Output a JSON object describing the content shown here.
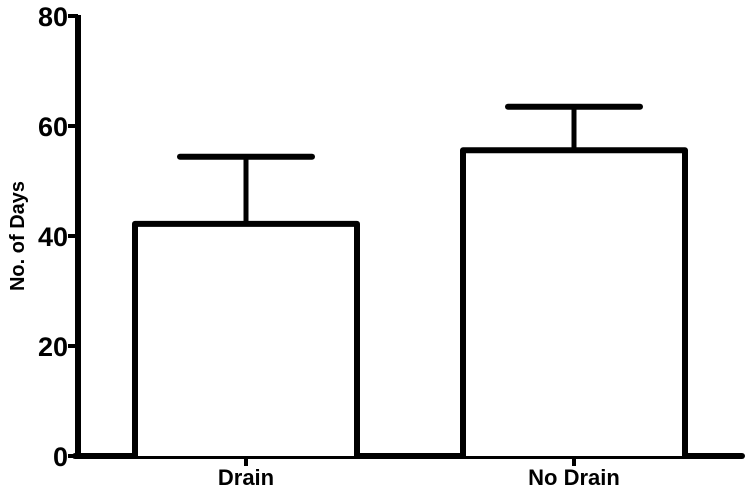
{
  "chart_data": {
    "type": "bar",
    "title": "",
    "xlabel": "",
    "ylabel": "No. of Days",
    "categories": [
      "Drain",
      "No Drain"
    ],
    "values": [
      42.2,
      55.6
    ],
    "error_bars_upper": [
      12.2,
      7.9
    ],
    "ylim": [
      0,
      80
    ],
    "yticks": [
      0,
      20,
      40,
      60,
      80
    ],
    "grid": false,
    "legend": null,
    "bar_fill": "#ffffff",
    "bar_stroke": "#000000"
  }
}
